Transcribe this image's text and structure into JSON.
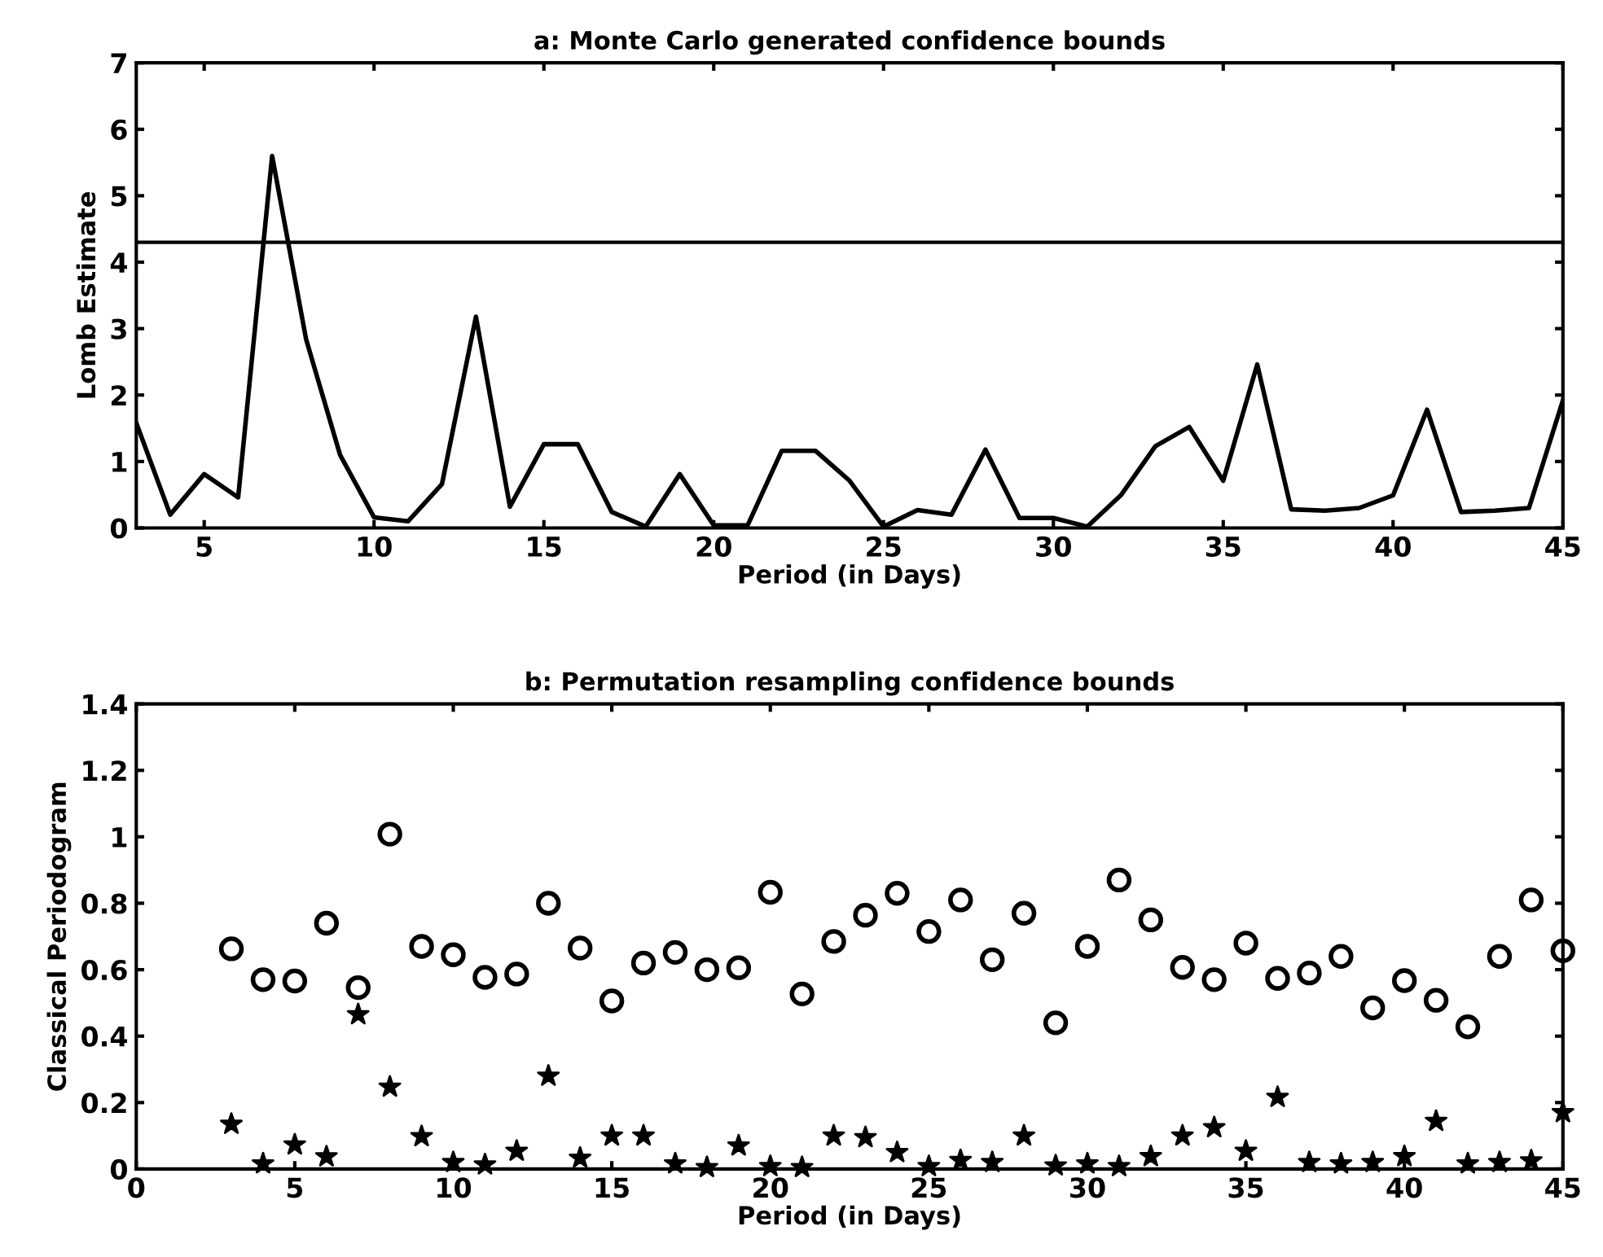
{
  "chart_data": [
    {
      "type": "line",
      "title": "a: Monte Carlo generated confidence bounds",
      "xlabel": "Period (in Days)",
      "ylabel": "Lomb Estimate",
      "x": [
        3,
        4,
        5,
        6,
        7,
        8,
        9,
        10,
        11,
        12,
        13,
        14,
        15,
        16,
        17,
        18,
        19,
        20,
        21,
        22,
        23,
        24,
        25,
        26,
        27,
        28,
        29,
        30,
        31,
        32,
        33,
        34,
        35,
        36,
        37,
        38,
        39,
        40,
        41,
        42,
        43,
        44,
        45
      ],
      "series": [
        {
          "color": "#000000",
          "values": [
            1.58,
            0.2,
            0.81,
            0.46,
            5.6,
            2.84,
            1.1,
            0.16,
            0.1,
            0.66,
            3.18,
            0.32,
            1.26,
            1.26,
            0.24,
            0.02,
            0.81,
            0.04,
            0.04,
            1.16,
            1.16,
            0.71,
            0.02,
            0.27,
            0.2,
            1.18,
            0.15,
            0.15,
            0.02,
            0.5,
            1.23,
            1.52,
            0.71,
            2.46,
            0.28,
            0.26,
            0.3,
            0.49,
            1.78,
            0.24,
            0.26,
            0.3,
            1.92
          ]
        }
      ],
      "ref_lines": [
        {
          "axis": "y",
          "value": 4.3,
          "color": "#000000"
        }
      ],
      "xlim": [
        3,
        45
      ],
      "xticks": [
        5,
        10,
        15,
        20,
        25,
        30,
        35,
        40,
        45
      ],
      "ylim": [
        0,
        7
      ],
      "yticks": [
        0,
        1,
        2,
        3,
        4,
        5,
        6,
        7
      ],
      "grid": false,
      "legend": false,
      "line_style": "solid",
      "marker": "none"
    },
    {
      "type": "scatter",
      "title": "b: Permutation resampling confidence bounds",
      "xlabel": "Period (in Days)",
      "ylabel": "Classical Periodogram",
      "x": [
        3,
        4,
        5,
        6,
        7,
        8,
        9,
        10,
        11,
        12,
        13,
        14,
        15,
        16,
        17,
        18,
        19,
        20,
        21,
        22,
        23,
        24,
        25,
        26,
        27,
        28,
        29,
        30,
        31,
        32,
        33,
        34,
        35,
        36,
        37,
        38,
        39,
        40,
        41,
        42,
        43,
        44,
        45
      ],
      "series": [
        {
          "color": "#000000",
          "marker": "circle",
          "values": [
            0.663,
            0.57,
            0.566,
            0.74,
            0.546,
            1.008,
            0.67,
            0.645,
            0.577,
            0.587,
            0.8,
            0.665,
            0.506,
            0.62,
            0.652,
            0.6,
            0.606,
            0.833,
            0.527,
            0.685,
            0.764,
            0.83,
            0.715,
            0.81,
            0.63,
            0.77,
            0.44,
            0.67,
            0.87,
            0.75,
            0.607,
            0.57,
            0.68,
            0.574,
            0.59,
            0.64,
            0.485,
            0.567,
            0.508,
            0.428,
            0.64,
            0.81,
            0.657
          ]
        },
        {
          "color": "#000000",
          "marker": "star",
          "values": [
            0.135,
            0.016,
            0.073,
            0.037,
            0.465,
            0.247,
            0.098,
            0.02,
            0.013,
            0.054,
            0.28,
            0.033,
            0.1,
            0.1,
            0.016,
            0.005,
            0.07,
            0.008,
            0.005,
            0.1,
            0.095,
            0.05,
            0.008,
            0.026,
            0.02,
            0.1,
            0.01,
            0.016,
            0.008,
            0.038,
            0.1,
            0.125,
            0.054,
            0.216,
            0.02,
            0.016,
            0.02,
            0.038,
            0.144,
            0.016,
            0.02,
            0.025,
            0.17
          ]
        }
      ],
      "xlim": [
        0,
        45
      ],
      "xticks": [
        0,
        5,
        10,
        15,
        20,
        25,
        30,
        35,
        40,
        45
      ],
      "ylim": [
        0,
        1.4
      ],
      "yticks": [
        0,
        0.2,
        0.4,
        0.6,
        0.8,
        {
          "value": 1,
          "label": "1"
        },
        1.2,
        1.4
      ],
      "grid": false,
      "legend": false
    }
  ]
}
